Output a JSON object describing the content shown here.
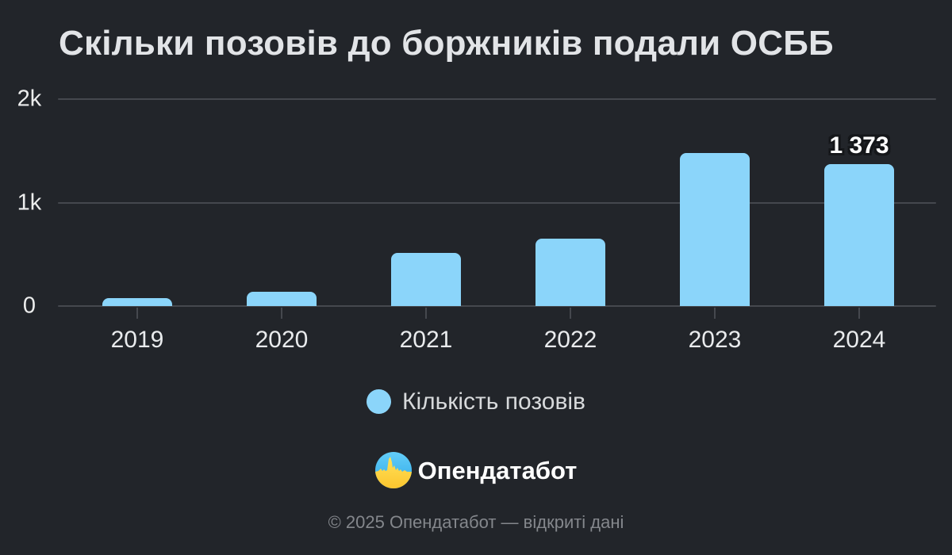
{
  "page": {
    "background": "#22252a"
  },
  "chart_data": {
    "type": "bar",
    "title": "Скільки позовів до боржників подали ОСББ",
    "categories": [
      "2019",
      "2020",
      "2021",
      "2022",
      "2023",
      "2024"
    ],
    "values": [
      80,
      140,
      510,
      650,
      1480,
      1373
    ],
    "value_labels": [
      "",
      "",
      "",
      "",
      "",
      "1 373"
    ],
    "series_name": "Кількість позовів",
    "xlabel": "",
    "ylabel": "",
    "ylim": [
      0,
      2000
    ],
    "yticks": [
      {
        "value": 0,
        "label": "0"
      },
      {
        "value": 1000,
        "label": "1k"
      },
      {
        "value": 2000,
        "label": "2k"
      }
    ],
    "grid": "horizontal",
    "legend_position": "bottom",
    "colors": {
      "bar": "#8bd5fa",
      "gridline": "#45484e",
      "axis_text": "#e9ebed",
      "annotation_text": "#ffffff",
      "background": "#22252a"
    }
  },
  "legend": {
    "items": [
      {
        "label": "Кількість позовів",
        "color": "#8bd5fa"
      }
    ]
  },
  "brand": {
    "name": "Опендатабот",
    "logo_colors": {
      "blue": "#49c2f4",
      "yellow": "#ffd43b"
    }
  },
  "footer": {
    "text": "© 2025 Опендатабот — відкриті дані"
  }
}
